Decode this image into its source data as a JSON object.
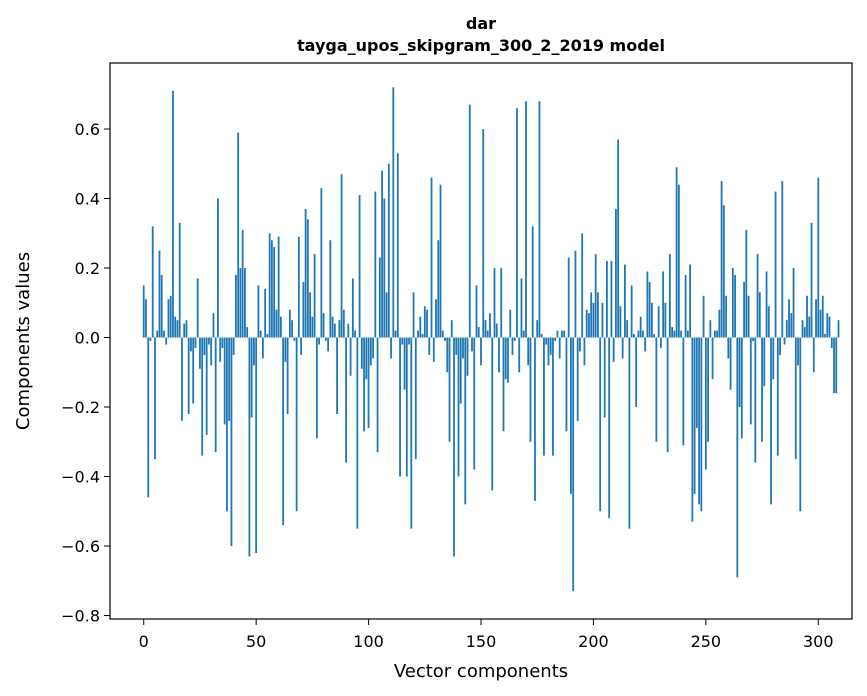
{
  "chart_data": {
    "type": "bar",
    "title_line1": "dar",
    "title_line2": "tayga_upos_skipgram_300_2_2019 model",
    "xlabel": "Vector components",
    "ylabel": "Components values",
    "xlim": [
      -15,
      315
    ],
    "ylim": [
      -0.81,
      0.79
    ],
    "xticks": [
      0,
      50,
      100,
      150,
      200,
      250,
      300
    ],
    "yticks": [
      -0.8,
      -0.6,
      -0.4,
      -0.2,
      0.0,
      0.2,
      0.4,
      0.6
    ],
    "ytick_labels": [
      "−0.8",
      "−0.6",
      "−0.4",
      "−0.2",
      "0.0",
      "0.2",
      "0.4",
      "0.6"
    ],
    "bar_color": "#1f77b4",
    "values": [
      0.15,
      0.11,
      -0.46,
      -0.01,
      0.32,
      -0.35,
      0.02,
      0.25,
      0.18,
      0.02,
      -0.02,
      0.11,
      0.12,
      0.71,
      0.06,
      0.05,
      0.33,
      -0.24,
      0.04,
      0.05,
      -0.22,
      -0.04,
      -0.19,
      -0.03,
      0.17,
      -0.09,
      -0.34,
      -0.05,
      -0.28,
      -0.02,
      -0.08,
      0.07,
      -0.33,
      0.4,
      -0.07,
      -0.03,
      -0.25,
      -0.5,
      -0.24,
      -0.6,
      -0.05,
      0.18,
      0.59,
      0.2,
      0.31,
      0.2,
      0.03,
      -0.63,
      -0.23,
      -0.08,
      -0.62,
      0.15,
      0.02,
      -0.06,
      0.14,
      0.01,
      0.3,
      0.28,
      0.26,
      0.08,
      0.29,
      0.06,
      -0.54,
      -0.07,
      -0.22,
      0.08,
      0.05,
      -0.01,
      -0.5,
      0.29,
      -0.05,
      0.16,
      0.37,
      0.34,
      0.13,
      0.06,
      0.24,
      -0.29,
      -0.02,
      0.43,
      0.07,
      -0.01,
      -0.04,
      0.28,
      0.06,
      0.04,
      -0.22,
      0.05,
      0.47,
      0.08,
      -0.36,
      0.04,
      -0.11,
      0.17,
      0.02,
      -0.55,
      0.41,
      -0.09,
      -0.27,
      -0.12,
      -0.26,
      -0.08,
      -0.06,
      0.42,
      -0.33,
      0.23,
      0.48,
      0.4,
      0.13,
      0.5,
      -0.06,
      0.72,
      0.02,
      0.53,
      -0.4,
      -0.02,
      -0.15,
      -0.4,
      -0.02,
      -0.55,
      0.13,
      -0.35,
      0.02,
      0.06,
      0.01,
      0.09,
      0.08,
      -0.05,
      0.46,
      -0.07,
      0.11,
      0.28,
      0.44,
      0.02,
      -0.01,
      -0.1,
      -0.3,
      0.05,
      -0.63,
      -0.05,
      -0.4,
      -0.19,
      -0.06,
      -0.48,
      -0.11,
      0.67,
      -0.04,
      -0.38,
      0.15,
      0.03,
      -0.08,
      0.6,
      0.05,
      0.02,
      0.07,
      -0.44,
      0.2,
      0.04,
      -0.1,
      0.2,
      -0.27,
      -0.12,
      -0.13,
      0.08,
      -0.05,
      -0.01,
      0.66,
      -0.1,
      0.17,
      0.02,
      0.68,
      -0.08,
      -0.3,
      0.32,
      -0.47,
      0.05,
      0.68,
      0.01,
      -0.34,
      -0.02,
      -0.08,
      -0.05,
      -0.34,
      -0.01,
      0.02,
      -0.06,
      0.02,
      0.02,
      -0.27,
      0.23,
      -0.45,
      -0.73,
      0.25,
      -0.24,
      -0.04,
      0.3,
      -0.08,
      0.08,
      0.07,
      0.13,
      0.1,
      0.24,
      0.13,
      -0.5,
      0.1,
      -0.23,
      0.22,
      -0.52,
      0.22,
      -0.07,
      0.37,
      0.57,
      0.09,
      -0.06,
      0.21,
      0.05,
      -0.55,
      0.15,
      0.01,
      -0.2,
      0.02,
      0.06,
      0.02,
      -0.04,
      0.19,
      0.16,
      0.1,
      0.01,
      -0.3,
      0.09,
      -0.03,
      0.19,
      0.1,
      -0.33,
      0.24,
      0.03,
      0.02,
      0.49,
      0.44,
      0.02,
      -0.31,
      0.18,
      0.02,
      0.21,
      -0.53,
      -0.45,
      -0.26,
      -0.48,
      -0.5,
      0.12,
      -0.38,
      -0.3,
      0.05,
      -0.12,
      0.02,
      0.02,
      0.08,
      0.45,
      0.38,
      0.12,
      -0.06,
      -0.15,
      0.2,
      0.18,
      -0.69,
      -0.2,
      -0.29,
      0.16,
      0.31,
      0.12,
      -0.25,
      -0.01,
      -0.36,
      0.24,
      0.13,
      -0.3,
      -0.14,
      0.19,
      0.09,
      -0.48,
      -0.12,
      0.42,
      -0.34,
      -0.05,
      0.45,
      -0.02,
      0.05,
      0.11,
      0.07,
      0.2,
      -0.35,
      -0.08,
      -0.5,
      0.05,
      0.03,
      0.12,
      0.06,
      0.33,
      -0.1,
      0.11,
      0.46,
      0.08,
      0.12,
      0.01,
      0.07,
      0.06,
      -0.03,
      -0.16,
      -0.16,
      0.05
    ]
  }
}
